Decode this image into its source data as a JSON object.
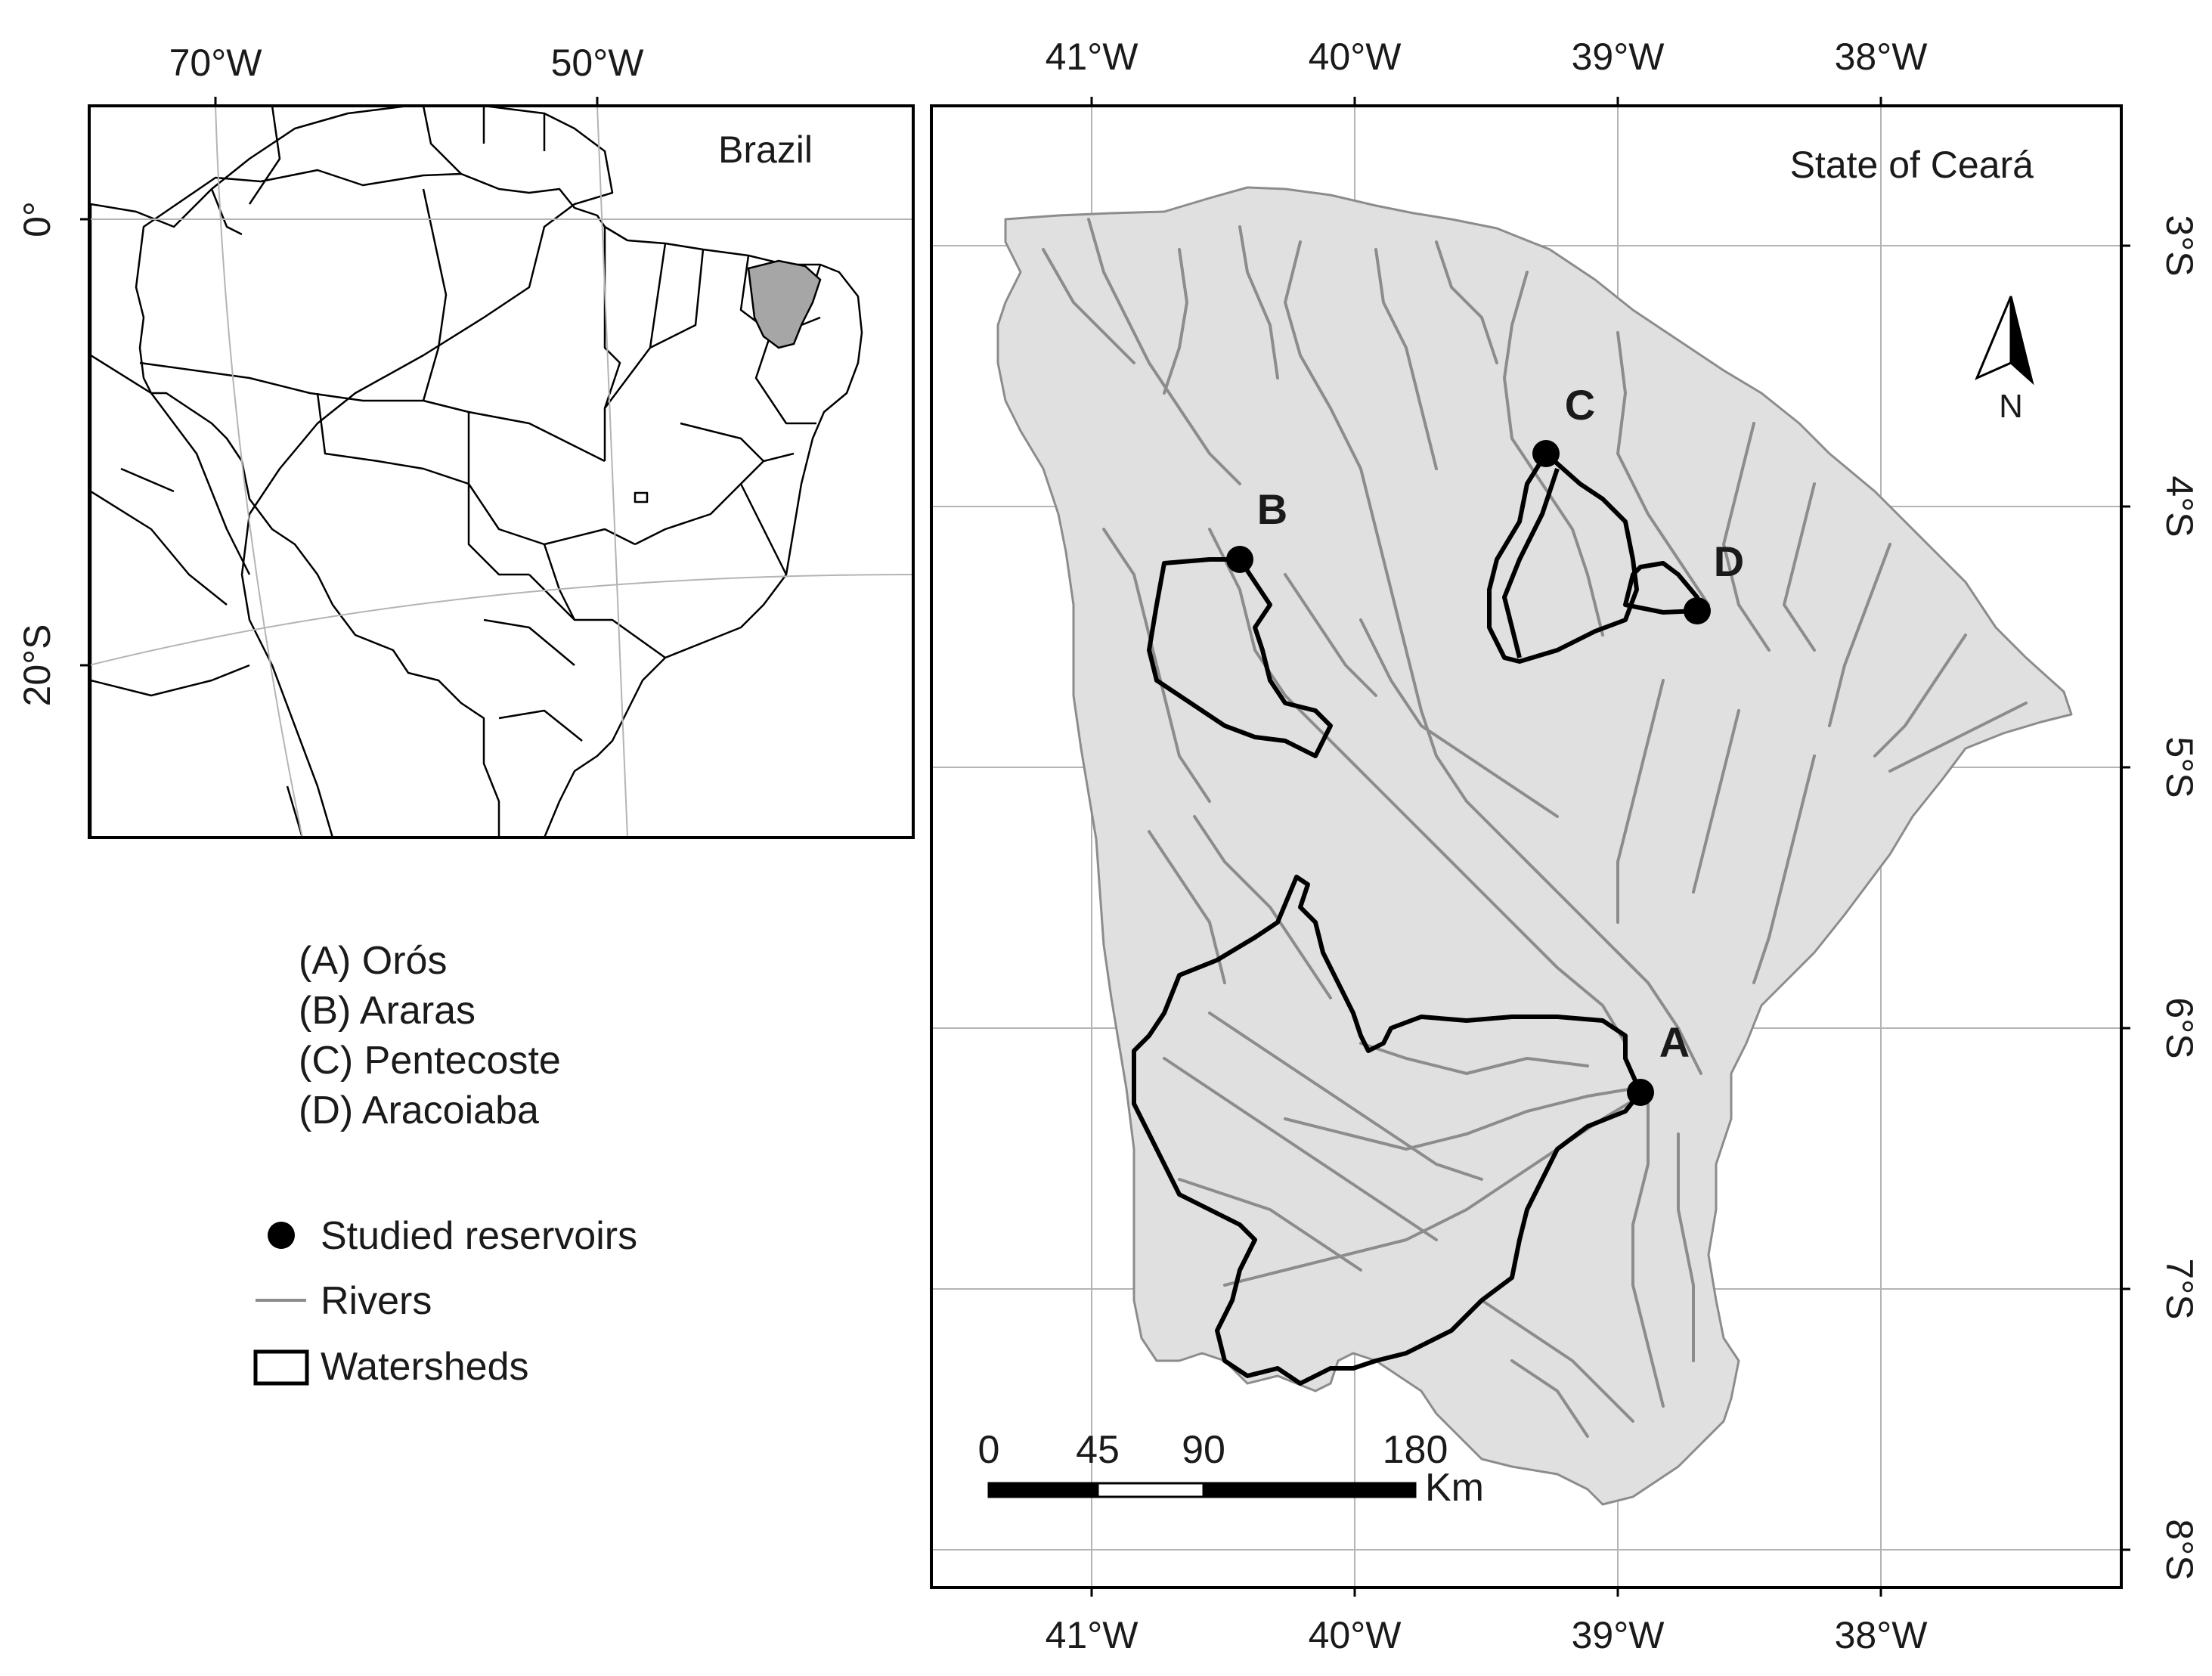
{
  "inset": {
    "title": "Brazil",
    "lon_labels": [
      "70°W",
      "50°W"
    ],
    "lat_labels": [
      "0°",
      "20°S"
    ]
  },
  "main": {
    "title": "State of Ceará",
    "lon_labels": [
      "41°W",
      "40°W",
      "39°W",
      "38°W"
    ],
    "lat_labels": [
      "3°S",
      "4°S",
      "5°S",
      "6°S",
      "7°S",
      "8°S"
    ],
    "north_label": "N",
    "scale": {
      "ticks": [
        "0",
        "45",
        "90",
        "180"
      ],
      "unit": "Km"
    },
    "reservoirs": [
      {
        "id": "A",
        "label": "A"
      },
      {
        "id": "B",
        "label": "B"
      },
      {
        "id": "C",
        "label": "C"
      },
      {
        "id": "D",
        "label": "D"
      }
    ]
  },
  "legend": {
    "names": [
      "(A) Orós",
      "(B) Araras",
      "(C) Pentecoste",
      "(D) Aracoiaba"
    ],
    "symbols": [
      {
        "icon": "black-dot",
        "label": "Studied reservoirs"
      },
      {
        "icon": "gray-line",
        "label": "Rivers"
      },
      {
        "icon": "outlined-box",
        "label": "Watersheds"
      }
    ]
  },
  "colors": {
    "land": "#e0e0e0",
    "ceara_highlight": "#a6a6a6",
    "rivers": "#8c8c8c",
    "boundaries": "#000000"
  }
}
